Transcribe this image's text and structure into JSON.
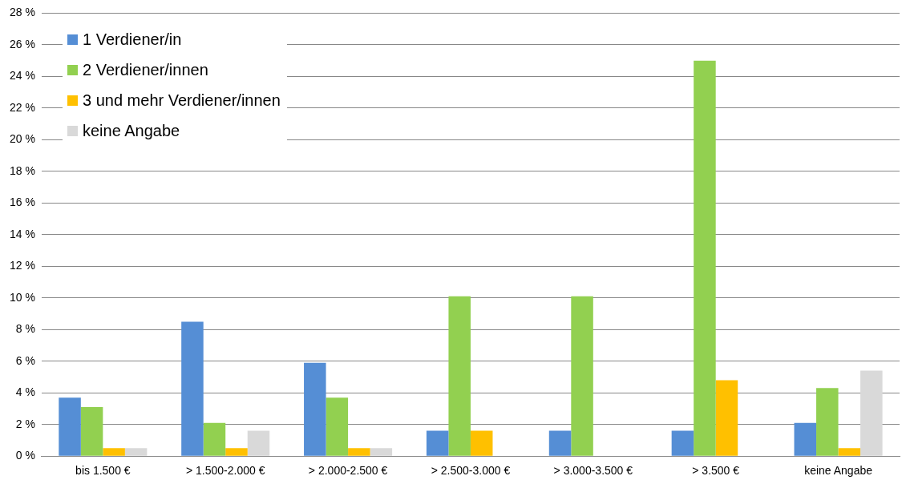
{
  "chart_data": {
    "type": "bar",
    "categories": [
      "bis 1.500 €",
      "> 1.500-2.000 €",
      "> 2.000-2.500 €",
      "> 2.500-3.000 €",
      "> 3.000-3.500 €",
      "> 3.500 €",
      "keine Angabe"
    ],
    "series": [
      {
        "name": "1 Verdiener/in",
        "color": "#558ed5",
        "values": [
          3.7,
          8.5,
          5.9,
          1.6,
          1.6,
          1.6,
          2.1
        ]
      },
      {
        "name": "2 Verdiener/innen",
        "color": "#92d050",
        "values": [
          3.1,
          2.1,
          3.7,
          10.1,
          10.1,
          25.0,
          4.3
        ]
      },
      {
        "name": "3 und mehr Verdiener/innen",
        "color": "#ffc000",
        "values": [
          0.5,
          0.5,
          0.5,
          1.6,
          0,
          4.8,
          0.5
        ]
      },
      {
        "name": "keine Angabe",
        "color": "#d9d9d9",
        "values": [
          0.5,
          1.6,
          0.5,
          0,
          0,
          0,
          5.4
        ]
      }
    ],
    "ylim": [
      0,
      28
    ],
    "yticks": [
      {
        "value": 0,
        "label": "0 %"
      },
      {
        "value": 2,
        "label": "2 %"
      },
      {
        "value": 4,
        "label": "4 %"
      },
      {
        "value": 6,
        "label": "6 %"
      },
      {
        "value": 8,
        "label": "8 %"
      },
      {
        "value": 10,
        "label": "10 %"
      },
      {
        "value": 12,
        "label": "12 %"
      },
      {
        "value": 14,
        "label": "14 %"
      },
      {
        "value": 16,
        "label": "16 %"
      },
      {
        "value": 18,
        "label": "18 %"
      },
      {
        "value": 20,
        "label": "20 %"
      },
      {
        "value": 22,
        "label": "22 %"
      },
      {
        "value": 24,
        "label": "24 %"
      },
      {
        "value": 26,
        "label": "26 %"
      },
      {
        "value": 28,
        "label": "28 %"
      }
    ],
    "grid": "y",
    "legend": "top left"
  }
}
